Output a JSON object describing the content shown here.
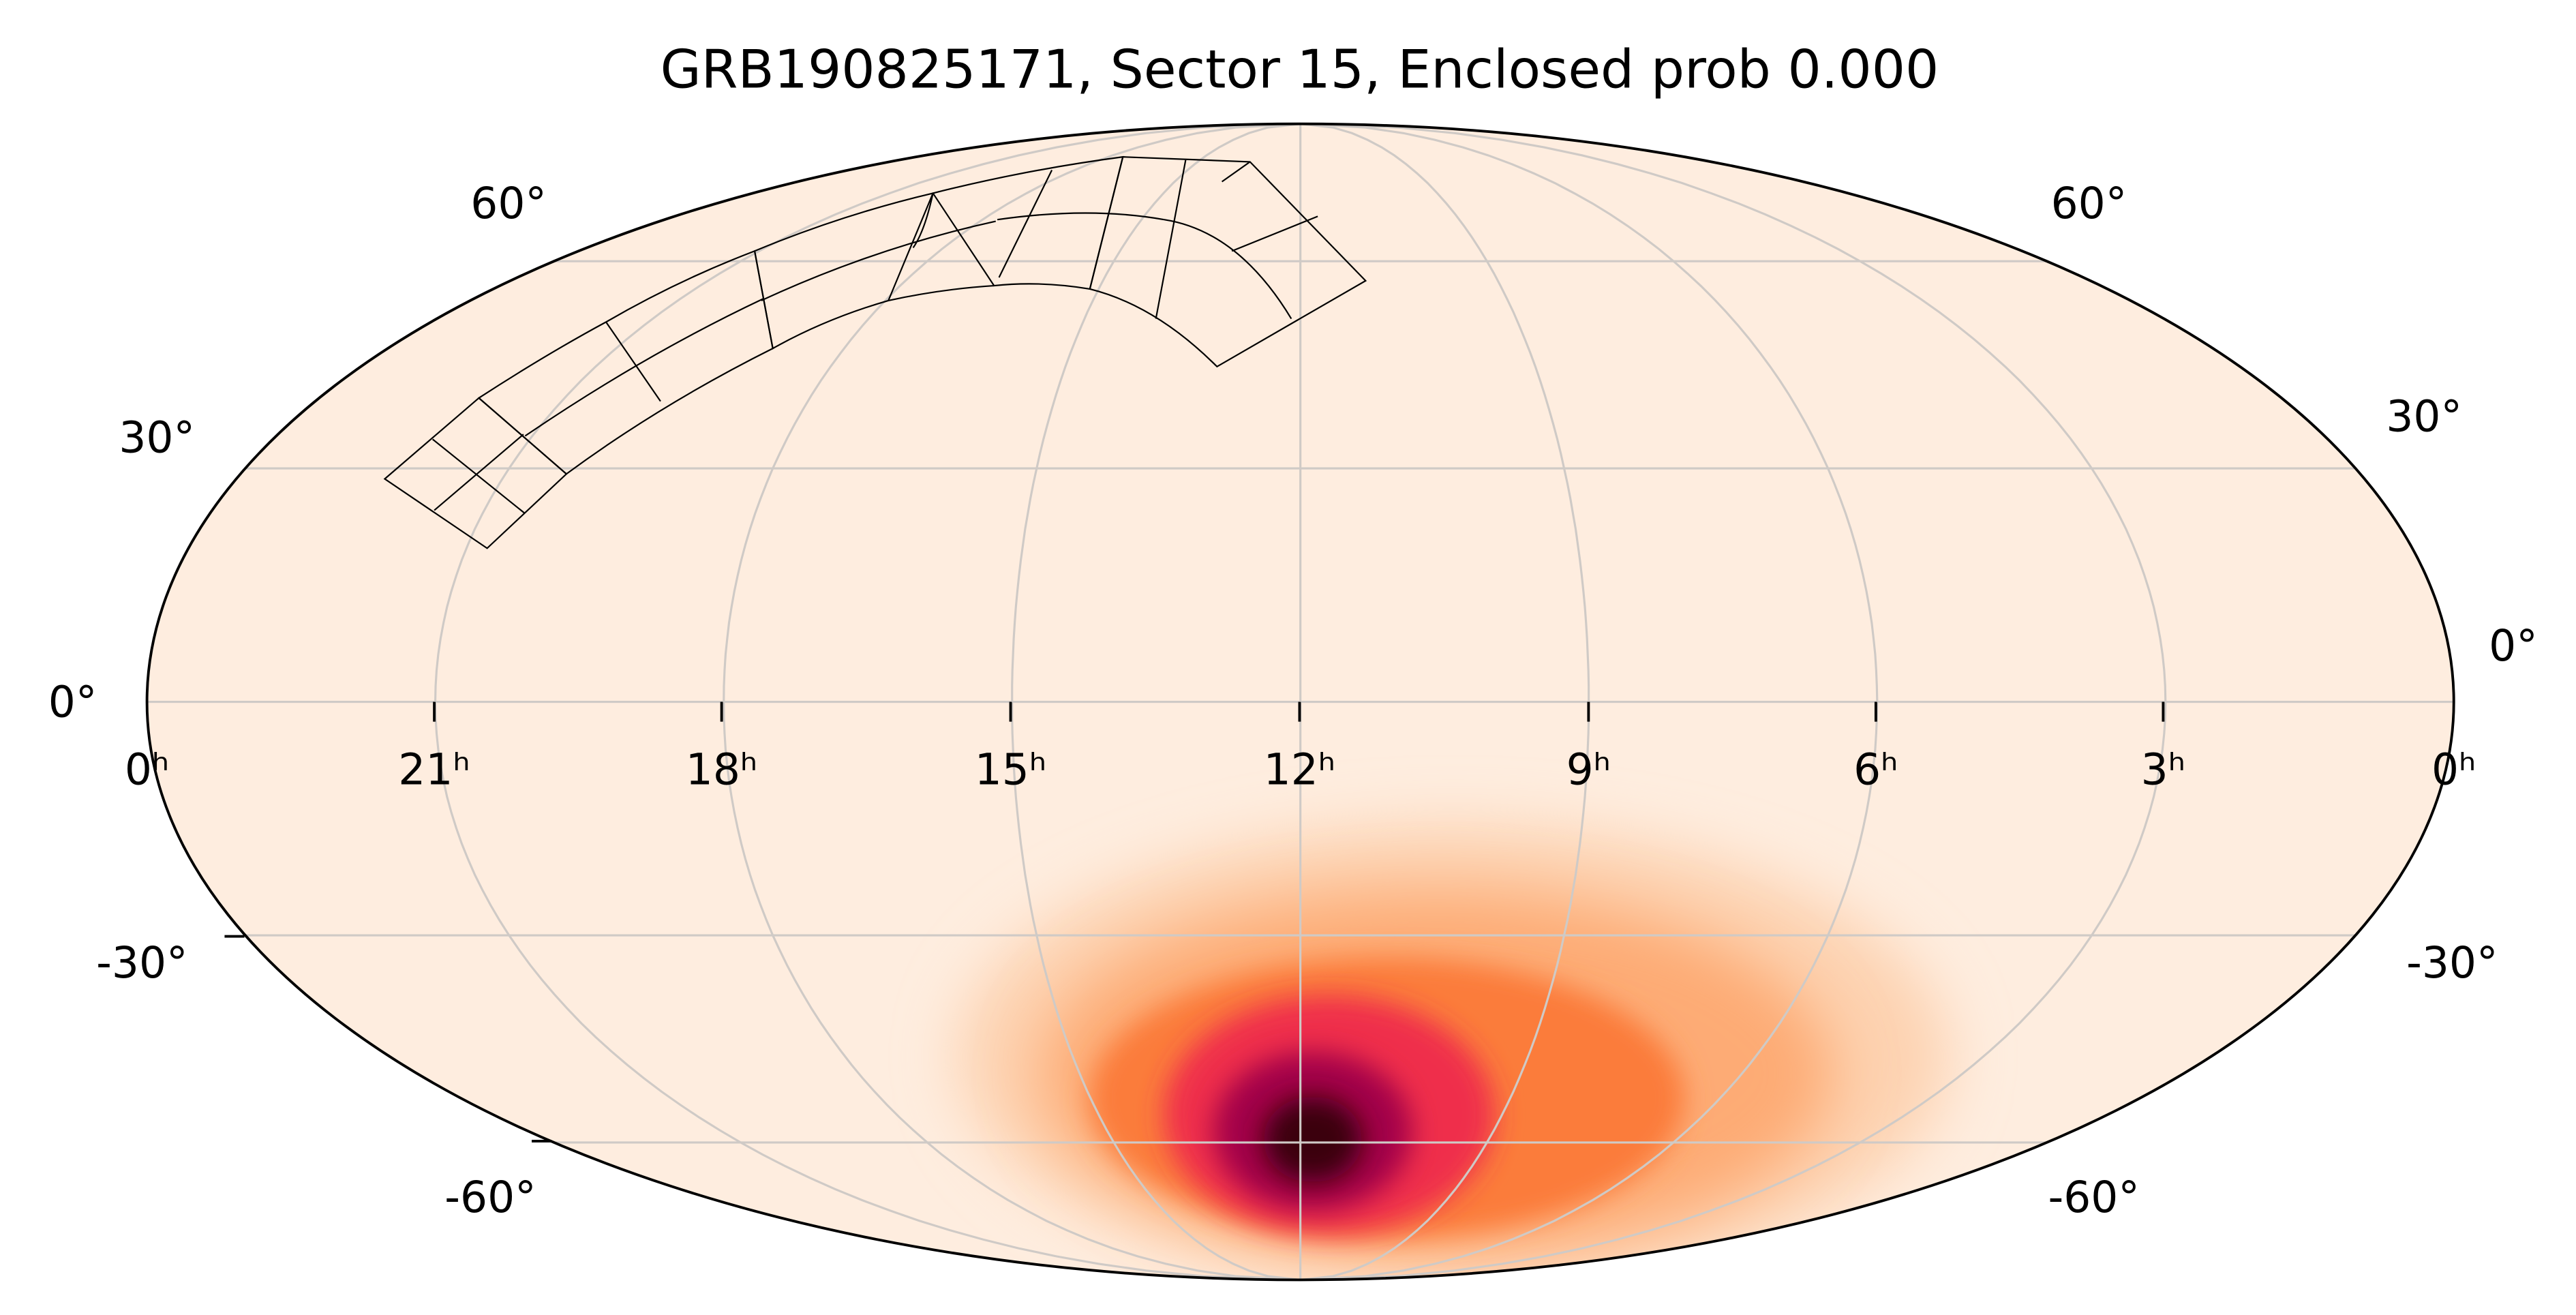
{
  "title": "GRB190825171, Sector 15, Enclosed prob 0.000",
  "ra_labels": [
    "0ʰ",
    "21ʰ",
    "18ʰ",
    "15ʰ",
    "12ʰ",
    "9ʰ",
    "6ʰ",
    "3ʰ",
    "0ʰ"
  ],
  "dec_labels_left": [
    "60°",
    "30°",
    "0°",
    "-30°",
    "-60°"
  ],
  "dec_labels_right": [
    "60°",
    "30°",
    "0°",
    "-30°",
    "-60°"
  ]
}
